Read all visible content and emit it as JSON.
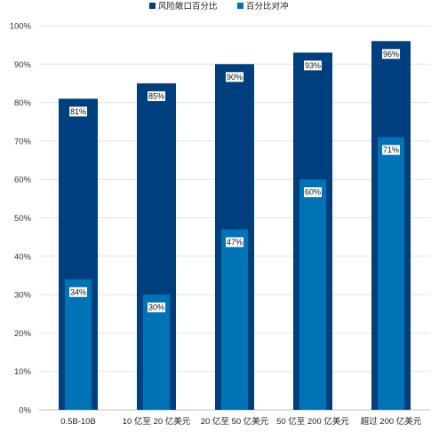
{
  "chart_data": {
    "type": "bar",
    "categories": [
      "0.5B-10B",
      "10 亿至 20 亿美元",
      "20 亿至 50 亿美元",
      "50 亿至 200 亿美元",
      "超过 200 亿美元"
    ],
    "series": [
      {
        "name": "风险敞口百分比",
        "values": [
          81,
          85,
          90,
          93,
          96
        ],
        "labels": [
          "81%",
          "85%",
          "90%",
          "93%",
          "96%"
        ],
        "color": "#003f7d"
      },
      {
        "name": "百分比对冲",
        "values": [
          34,
          30,
          47,
          60,
          71
        ],
        "labels": [
          "34%",
          "30%",
          "47%",
          "60%",
          "71%"
        ],
        "color": "#0073b6"
      }
    ],
    "y_ticks": [
      "0%",
      "10%",
      "20%",
      "30%",
      "40%",
      "50%",
      "60%",
      "70%",
      "80%",
      "90%",
      "100%"
    ],
    "ylim": [
      0,
      100
    ],
    "grid": true,
    "legend": "top-center",
    "title": "",
    "xlabel": "",
    "ylabel": ""
  }
}
